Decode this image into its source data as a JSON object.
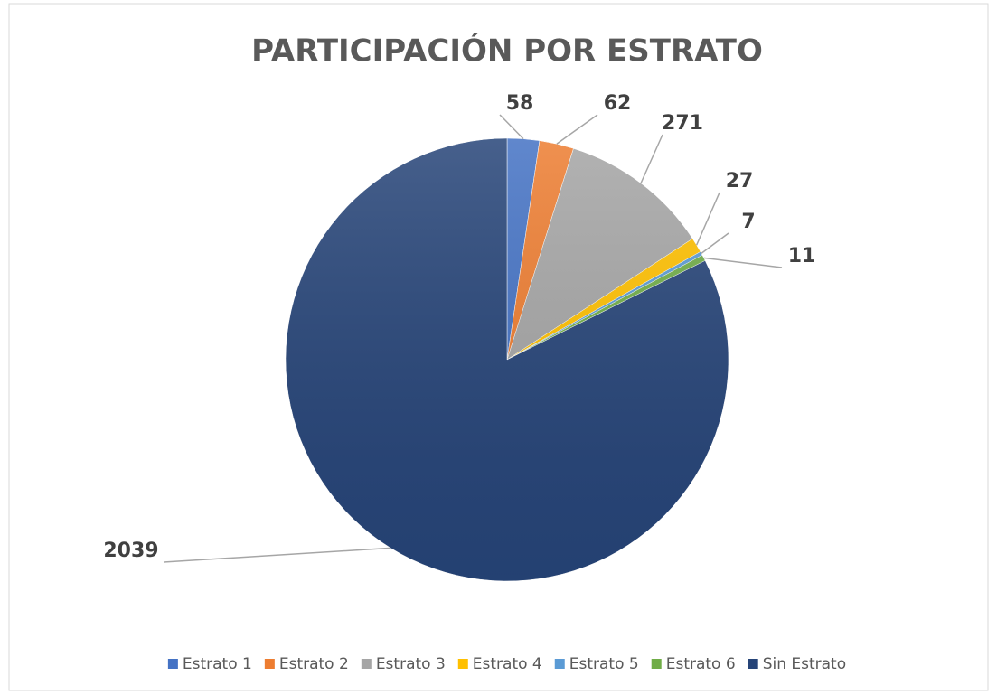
{
  "chart_data": {
    "type": "pie",
    "title": "PARTICIPACIÓN POR ESTRATO",
    "categories": [
      "Estrato 1",
      "Estrato 2",
      "Estrato 3",
      "Estrato 4",
      "Estrato 5",
      "Estrato 6",
      "Sin Estrato"
    ],
    "values": [
      58,
      62,
      271,
      27,
      7,
      11,
      2039
    ],
    "colors": [
      "#4472c4",
      "#ed7d31",
      "#a5a5a5",
      "#ffc000",
      "#5b9bd5",
      "#70ad47",
      "#264478"
    ],
    "legend": "bottom"
  }
}
